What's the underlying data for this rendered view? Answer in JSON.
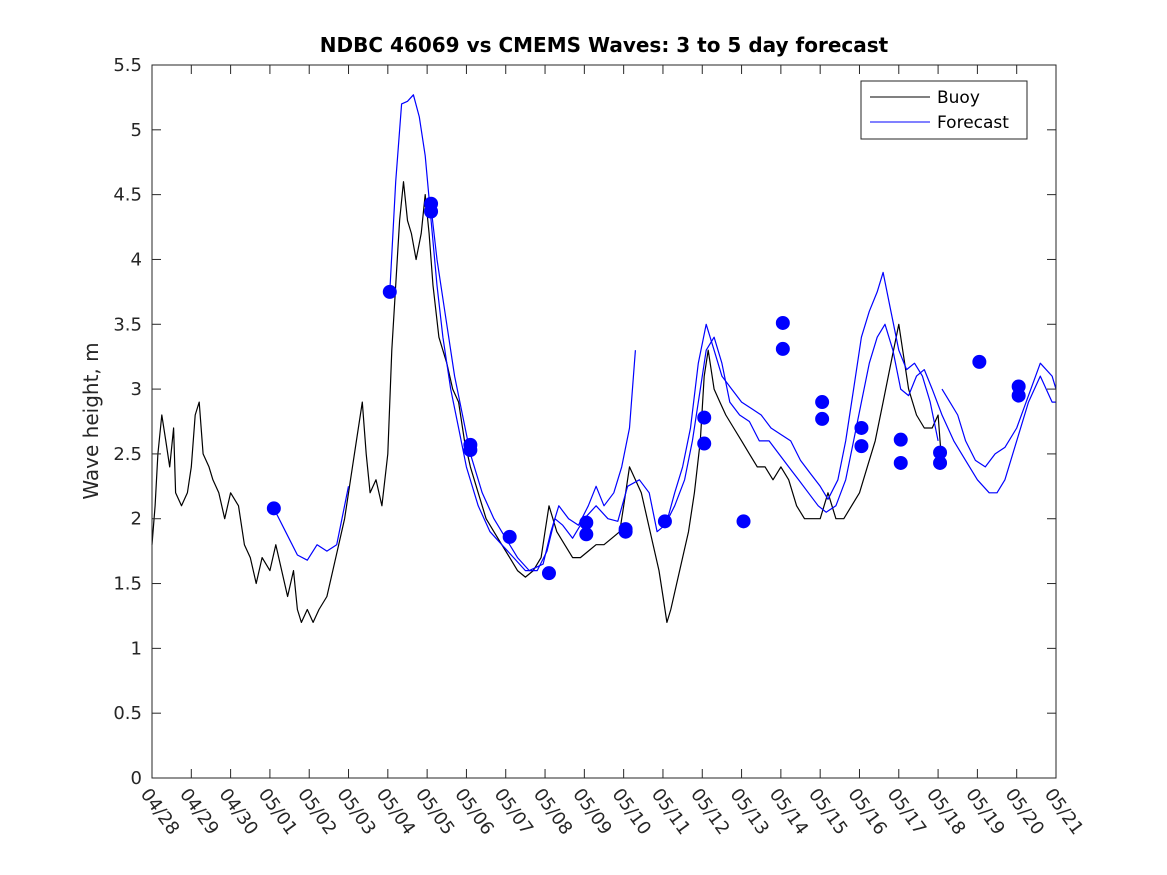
{
  "chart_data": {
    "type": "line",
    "title": "NDBC 46069 vs CMEMS Waves: 3 to 5 day forecast",
    "xlabel": "",
    "ylabel": "Wave height, m",
    "xlim": [
      "04/28",
      "05/21"
    ],
    "ylim": [
      0,
      5.5
    ],
    "x_ticks": [
      "04/28",
      "04/29",
      "04/30",
      "05/01",
      "05/02",
      "05/03",
      "05/04",
      "05/05",
      "05/06",
      "05/07",
      "05/08",
      "05/09",
      "05/10",
      "05/11",
      "05/12",
      "05/13",
      "05/14",
      "05/15",
      "05/16",
      "05/17",
      "05/18",
      "05/19",
      "05/20",
      "05/21"
    ],
    "y_ticks": [
      "0",
      "0.5",
      "1",
      "1.5",
      "2",
      "2.5",
      "3",
      "3.5",
      "4",
      "4.5",
      "5",
      "5.5"
    ],
    "legend": {
      "position": "top-right",
      "entries": [
        {
          "label": "Buoy",
          "color": "#000000"
        },
        {
          "label": "Forecast",
          "color": "#0000ff"
        }
      ]
    },
    "grid": false,
    "x_units": "days from 04/28",
    "series": [
      {
        "name": "Buoy",
        "color": "#000000",
        "points": [
          [
            0.0,
            1.8
          ],
          [
            0.08,
            2.1
          ],
          [
            0.15,
            2.5
          ],
          [
            0.25,
            2.8
          ],
          [
            0.35,
            2.6
          ],
          [
            0.45,
            2.4
          ],
          [
            0.55,
            2.7
          ],
          [
            0.6,
            2.2
          ],
          [
            0.75,
            2.1
          ],
          [
            0.9,
            2.2
          ],
          [
            1.0,
            2.4
          ],
          [
            1.1,
            2.8
          ],
          [
            1.2,
            2.9
          ],
          [
            1.3,
            2.5
          ],
          [
            1.45,
            2.4
          ],
          [
            1.55,
            2.3
          ],
          [
            1.7,
            2.2
          ],
          [
            1.85,
            2.0
          ],
          [
            2.0,
            2.2
          ],
          [
            2.2,
            2.1
          ],
          [
            2.35,
            1.8
          ],
          [
            2.5,
            1.7
          ],
          [
            2.65,
            1.5
          ],
          [
            2.8,
            1.7
          ],
          [
            3.0,
            1.6
          ],
          [
            3.15,
            1.8
          ],
          [
            3.3,
            1.6
          ],
          [
            3.45,
            1.4
          ],
          [
            3.6,
            1.6
          ],
          [
            3.7,
            1.3
          ],
          [
            3.8,
            1.2
          ],
          [
            3.95,
            1.3
          ],
          [
            4.1,
            1.2
          ],
          [
            4.25,
            1.3
          ],
          [
            4.45,
            1.4
          ],
          [
            4.6,
            1.6
          ],
          [
            4.75,
            1.8
          ],
          [
            4.9,
            2.0
          ],
          [
            5.05,
            2.3
          ],
          [
            5.2,
            2.6
          ],
          [
            5.35,
            2.9
          ],
          [
            5.45,
            2.5
          ],
          [
            5.55,
            2.2
          ],
          [
            5.7,
            2.3
          ],
          [
            5.85,
            2.1
          ],
          [
            6.0,
            2.5
          ],
          [
            6.1,
            3.3
          ],
          [
            6.2,
            3.8
          ],
          [
            6.3,
            4.3
          ],
          [
            6.4,
            4.6
          ],
          [
            6.5,
            4.3
          ],
          [
            6.6,
            4.2
          ],
          [
            6.72,
            4.0
          ],
          [
            6.85,
            4.2
          ],
          [
            6.95,
            4.5
          ],
          [
            7.05,
            4.2
          ],
          [
            7.15,
            3.8
          ],
          [
            7.3,
            3.4
          ],
          [
            7.5,
            3.2
          ],
          [
            7.65,
            3.0
          ],
          [
            7.8,
            2.9
          ],
          [
            7.95,
            2.6
          ],
          [
            8.1,
            2.4
          ],
          [
            8.3,
            2.2
          ],
          [
            8.5,
            2.0
          ],
          [
            8.7,
            1.9
          ],
          [
            8.9,
            1.8
          ],
          [
            9.1,
            1.7
          ],
          [
            9.3,
            1.6
          ],
          [
            9.5,
            1.55
          ],
          [
            9.7,
            1.6
          ],
          [
            9.9,
            1.7
          ],
          [
            10.0,
            1.9
          ],
          [
            10.1,
            2.1
          ],
          [
            10.3,
            1.9
          ],
          [
            10.5,
            1.8
          ],
          [
            10.7,
            1.7
          ],
          [
            10.9,
            1.7
          ],
          [
            11.1,
            1.75
          ],
          [
            11.3,
            1.8
          ],
          [
            11.5,
            1.8
          ],
          [
            11.7,
            1.85
          ],
          [
            11.9,
            1.9
          ],
          [
            12.0,
            2.1
          ],
          [
            12.15,
            2.4
          ],
          [
            12.3,
            2.3
          ],
          [
            12.45,
            2.2
          ],
          [
            12.6,
            2.0
          ],
          [
            12.75,
            1.8
          ],
          [
            12.9,
            1.6
          ],
          [
            13.0,
            1.4
          ],
          [
            13.1,
            1.2
          ],
          [
            13.2,
            1.3
          ],
          [
            13.35,
            1.5
          ],
          [
            13.5,
            1.7
          ],
          [
            13.65,
            1.9
          ],
          [
            13.8,
            2.2
          ],
          [
            13.95,
            2.6
          ],
          [
            14.05,
            3.1
          ],
          [
            14.15,
            3.3
          ],
          [
            14.3,
            3.0
          ],
          [
            14.45,
            2.9
          ],
          [
            14.6,
            2.8
          ],
          [
            14.8,
            2.7
          ],
          [
            15.0,
            2.6
          ],
          [
            15.2,
            2.5
          ],
          [
            15.4,
            2.4
          ],
          [
            15.6,
            2.4
          ],
          [
            15.8,
            2.3
          ],
          [
            16.0,
            2.4
          ],
          [
            16.2,
            2.3
          ],
          [
            16.4,
            2.1
          ],
          [
            16.6,
            2.0
          ],
          [
            16.8,
            2.0
          ],
          [
            17.0,
            2.0
          ],
          [
            17.2,
            2.2
          ],
          [
            17.4,
            2.0
          ],
          [
            17.6,
            2.0
          ],
          [
            17.8,
            2.1
          ],
          [
            18.0,
            2.2
          ],
          [
            18.2,
            2.4
          ],
          [
            18.4,
            2.6
          ],
          [
            18.6,
            2.9
          ],
          [
            18.8,
            3.2
          ],
          [
            19.0,
            3.5
          ],
          [
            19.1,
            3.3
          ],
          [
            19.25,
            3.0
          ],
          [
            19.45,
            2.8
          ],
          [
            19.65,
            2.7
          ],
          [
            19.85,
            2.7
          ],
          [
            20.0,
            2.8
          ],
          [
            20.1,
            2.4
          ]
        ]
      },
      {
        "name": "Forecast",
        "color": "#0000ff",
        "points": [
          [
            3.1,
            2.08
          ],
          [
            3.4,
            1.9
          ],
          [
            3.7,
            1.72
          ],
          [
            3.95,
            1.68
          ],
          [
            4.2,
            1.8
          ],
          [
            4.45,
            1.75
          ],
          [
            4.7,
            1.8
          ],
          [
            5.0,
            2.25
          ]
        ]
      },
      {
        "name": "Forecast",
        "color": "#0000ff",
        "points": [
          [
            6.05,
            3.75
          ],
          [
            6.2,
            4.6
          ],
          [
            6.35,
            5.2
          ],
          [
            6.5,
            5.22
          ],
          [
            6.65,
            5.27
          ],
          [
            6.8,
            5.1
          ],
          [
            6.95,
            4.8
          ],
          [
            7.1,
            4.3
          ],
          [
            7.25,
            3.8
          ],
          [
            7.4,
            3.4
          ],
          [
            7.6,
            3.0
          ],
          [
            7.8,
            2.7
          ],
          [
            8.0,
            2.4
          ],
          [
            8.3,
            2.1
          ],
          [
            8.6,
            1.9
          ],
          [
            8.9,
            1.8
          ],
          [
            9.2,
            1.7
          ],
          [
            9.5,
            1.6
          ],
          [
            9.8,
            1.6
          ],
          [
            10.05,
            1.75
          ],
          [
            10.25,
            2.0
          ],
          [
            10.45,
            1.95
          ],
          [
            10.7,
            1.85
          ],
          [
            11.0,
            2.0
          ],
          [
            11.3,
            2.1
          ],
          [
            11.6,
            2.0
          ],
          [
            11.85,
            1.98
          ],
          [
            12.1,
            2.25
          ],
          [
            12.4,
            2.3
          ],
          [
            12.65,
            2.2
          ],
          [
            12.85,
            1.9
          ],
          [
            13.05,
            1.95
          ],
          [
            13.3,
            2.1
          ],
          [
            13.55,
            2.3
          ],
          [
            13.75,
            2.6
          ],
          [
            13.95,
            3.0
          ],
          [
            14.1,
            3.3
          ],
          [
            14.3,
            3.4
          ],
          [
            14.5,
            3.2
          ],
          [
            14.7,
            2.9
          ],
          [
            14.95,
            2.8
          ],
          [
            15.2,
            2.75
          ],
          [
            15.45,
            2.6
          ],
          [
            15.7,
            2.6
          ],
          [
            15.95,
            2.5
          ],
          [
            16.2,
            2.4
          ],
          [
            16.45,
            2.3
          ],
          [
            16.7,
            2.2
          ],
          [
            16.95,
            2.1
          ],
          [
            17.15,
            2.05
          ],
          [
            17.4,
            2.1
          ],
          [
            17.65,
            2.3
          ],
          [
            17.85,
            2.6
          ],
          [
            18.05,
            2.9
          ],
          [
            18.25,
            3.2
          ],
          [
            18.45,
            3.4
          ],
          [
            18.65,
            3.5
          ],
          [
            18.85,
            3.3
          ],
          [
            19.05,
            3.0
          ],
          [
            19.25,
            2.95
          ],
          [
            19.45,
            3.1
          ],
          [
            19.65,
            3.15
          ],
          [
            19.85,
            3.0
          ],
          [
            20.1,
            2.8
          ],
          [
            20.4,
            2.6
          ],
          [
            20.7,
            2.45
          ],
          [
            21.0,
            2.3
          ],
          [
            21.3,
            2.2
          ],
          [
            21.5,
            2.2
          ],
          [
            21.7,
            2.3
          ],
          [
            22.0,
            2.6
          ],
          [
            22.3,
            2.9
          ],
          [
            22.6,
            3.1
          ],
          [
            22.9,
            2.9
          ],
          [
            23.0,
            2.9
          ]
        ]
      },
      {
        "name": "Forecast",
        "color": "#0000ff",
        "points": [
          [
            7.1,
            4.4
          ],
          [
            7.25,
            4.0
          ],
          [
            7.45,
            3.6
          ],
          [
            7.7,
            3.1
          ],
          [
            7.9,
            2.8
          ],
          [
            8.1,
            2.5
          ],
          [
            8.4,
            2.2
          ],
          [
            8.7,
            2.0
          ],
          [
            9.0,
            1.85
          ],
          [
            9.3,
            1.7
          ],
          [
            9.6,
            1.6
          ],
          [
            9.95,
            1.65
          ],
          [
            10.15,
            1.9
          ],
          [
            10.35,
            2.1
          ],
          [
            10.6,
            2.0
          ],
          [
            10.85,
            1.95
          ],
          [
            11.1,
            2.1
          ],
          [
            11.3,
            2.25
          ],
          [
            11.5,
            2.1
          ],
          [
            11.75,
            2.2
          ],
          [
            11.95,
            2.4
          ],
          [
            12.15,
            2.7
          ],
          [
            12.3,
            3.3
          ]
        ]
      },
      {
        "name": "Forecast",
        "color": "#0000ff",
        "points": [
          [
            13.1,
            1.98
          ],
          [
            13.3,
            2.2
          ],
          [
            13.5,
            2.4
          ],
          [
            13.7,
            2.7
          ],
          [
            13.9,
            3.2
          ],
          [
            14.1,
            3.5
          ],
          [
            14.3,
            3.3
          ],
          [
            14.5,
            3.1
          ],
          [
            14.75,
            3.0
          ],
          [
            15.0,
            2.9
          ],
          [
            15.25,
            2.85
          ],
          [
            15.5,
            2.8
          ],
          [
            15.75,
            2.7
          ],
          [
            16.0,
            2.65
          ],
          [
            16.25,
            2.6
          ],
          [
            16.5,
            2.45
          ],
          [
            16.75,
            2.35
          ],
          [
            17.0,
            2.25
          ],
          [
            17.2,
            2.15
          ],
          [
            17.45,
            2.3
          ],
          [
            17.65,
            2.6
          ],
          [
            17.85,
            3.0
          ],
          [
            18.05,
            3.4
          ],
          [
            18.25,
            3.6
          ],
          [
            18.45,
            3.75
          ],
          [
            18.6,
            3.9
          ],
          [
            18.8,
            3.6
          ],
          [
            19.0,
            3.3
          ],
          [
            19.2,
            3.15
          ],
          [
            19.4,
            3.2
          ],
          [
            19.6,
            3.1
          ],
          [
            19.8,
            2.9
          ],
          [
            20.0,
            2.6
          ]
        ]
      },
      {
        "name": "Forecast",
        "color": "#0000ff",
        "points": [
          [
            20.1,
            3.0
          ],
          [
            20.3,
            2.9
          ],
          [
            20.5,
            2.8
          ],
          [
            20.7,
            2.6
          ],
          [
            20.95,
            2.45
          ],
          [
            21.2,
            2.4
          ],
          [
            21.45,
            2.5
          ],
          [
            21.7,
            2.55
          ],
          [
            22.0,
            2.7
          ],
          [
            22.3,
            2.95
          ],
          [
            22.6,
            3.2
          ],
          [
            22.9,
            3.1
          ],
          [
            23.0,
            3.0
          ]
        ]
      }
    ],
    "markers": [
      [
        3.1,
        2.08
      ],
      [
        6.05,
        3.75
      ],
      [
        7.1,
        4.43
      ],
      [
        7.1,
        4.37
      ],
      [
        8.1,
        2.57
      ],
      [
        8.1,
        2.53
      ],
      [
        9.1,
        1.86
      ],
      [
        10.1,
        1.58
      ],
      [
        11.05,
        1.97
      ],
      [
        11.05,
        1.88
      ],
      [
        12.05,
        1.9
      ],
      [
        12.05,
        1.92
      ],
      [
        13.05,
        1.98
      ],
      [
        14.05,
        2.78
      ],
      [
        14.05,
        2.58
      ],
      [
        15.05,
        1.98
      ],
      [
        16.05,
        3.51
      ],
      [
        16.05,
        3.31
      ],
      [
        17.05,
        2.9
      ],
      [
        17.05,
        2.77
      ],
      [
        18.05,
        2.7
      ],
      [
        18.05,
        2.56
      ],
      [
        19.05,
        2.61
      ],
      [
        19.05,
        2.43
      ],
      [
        20.05,
        2.51
      ],
      [
        20.05,
        2.43
      ],
      [
        21.05,
        3.21
      ],
      [
        22.05,
        3.02
      ],
      [
        22.05,
        2.95
      ]
    ]
  }
}
